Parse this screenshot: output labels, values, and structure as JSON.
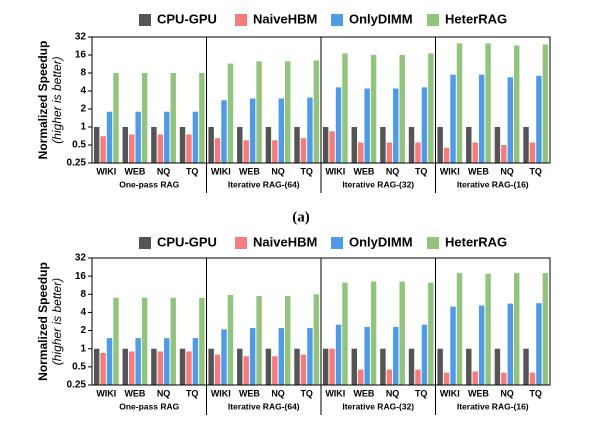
{
  "chart_data": [
    {
      "type": "bar",
      "yscale": "log",
      "ylabel": "Normalized Speedup",
      "ylabel2": "(higher is better)",
      "caption": "(a)",
      "categories": [
        "WIKI",
        "WEB",
        "NQ",
        "TQ",
        "WIKI",
        "WEB",
        "NQ",
        "TQ",
        "WIKI",
        "WEB",
        "NQ",
        "TQ",
        "WIKI",
        "WEB",
        "NQ",
        "TQ"
      ],
      "groups": [
        "One-pass RAG",
        "Iterative RAG-(64)",
        "Iterative RAG-(32)",
        "Iterative RAG-(16)"
      ],
      "ylim": [
        0.25,
        32
      ],
      "yticks": [
        0.25,
        0.5,
        1,
        2,
        4,
        8,
        16,
        32
      ],
      "series": [
        {
          "name": "CPU-GPU",
          "color": "#555555",
          "values": [
            1,
            1,
            1,
            1,
            1,
            1,
            1,
            1,
            1,
            1,
            1,
            1,
            1,
            1,
            1,
            1
          ]
        },
        {
          "name": "NaiveHBM",
          "color": "#f47c7c",
          "values": [
            0.7,
            0.75,
            0.75,
            0.75,
            0.65,
            0.6,
            0.6,
            0.65,
            0.85,
            0.55,
            0.55,
            0.55,
            0.45,
            0.55,
            0.5,
            0.55
          ]
        },
        {
          "name": "OnlyDIMM",
          "color": "#4f9be8",
          "values": [
            1.8,
            1.8,
            1.8,
            1.8,
            2.8,
            3,
            3,
            3.1,
            4.6,
            4.4,
            4.4,
            4.6,
            7.5,
            7.5,
            6.8,
            7.2
          ]
        },
        {
          "name": "HeterRAG",
          "color": "#93c47d",
          "values": [
            8,
            8,
            8,
            8,
            11.5,
            12.5,
            12.5,
            13,
            17,
            16,
            16,
            17,
            25,
            25,
            23,
            24
          ]
        }
      ]
    },
    {
      "type": "bar",
      "yscale": "log",
      "ylabel": "Normalized Speedup",
      "ylabel2": "(higher is better)",
      "categories": [
        "WIKI",
        "WEB",
        "NQ",
        "TQ",
        "WIKI",
        "WEB",
        "NQ",
        "TQ",
        "WIKI",
        "WEB",
        "NQ",
        "TQ",
        "WIKI",
        "WEB",
        "NQ",
        "TQ"
      ],
      "groups": [
        "One-pass RAG",
        "Iterative RAG-(64)",
        "Iterative RAG-(32)",
        "Iterative RAG-(16)"
      ],
      "ylim": [
        0.25,
        32
      ],
      "yticks": [
        0.25,
        0.5,
        1,
        2,
        4,
        8,
        16,
        32
      ],
      "series": [
        {
          "name": "CPU-GPU",
          "color": "#555555",
          "values": [
            1,
            1,
            1,
            1,
            1,
            1,
            1,
            1,
            1,
            1,
            1,
            1,
            1,
            1,
            1,
            1
          ]
        },
        {
          "name": "NaiveHBM",
          "color": "#f47c7c",
          "values": [
            0.85,
            0.9,
            0.9,
            0.9,
            0.8,
            0.75,
            0.75,
            0.8,
            1,
            0.45,
            0.45,
            0.45,
            0.4,
            0.42,
            0.4,
            0.4
          ]
        },
        {
          "name": "OnlyDIMM",
          "color": "#4f9be8",
          "values": [
            1.5,
            1.5,
            1.5,
            1.5,
            2.1,
            2.2,
            2.2,
            2.2,
            2.5,
            2.3,
            2.3,
            2.5,
            5,
            5.2,
            5.6,
            5.7
          ]
        },
        {
          "name": "HeterRAG",
          "color": "#93c47d",
          "values": [
            7,
            7,
            7,
            7,
            7.8,
            7.5,
            7.5,
            8,
            12.5,
            13,
            13,
            12.5,
            18,
            17.5,
            18,
            18
          ]
        }
      ]
    }
  ]
}
